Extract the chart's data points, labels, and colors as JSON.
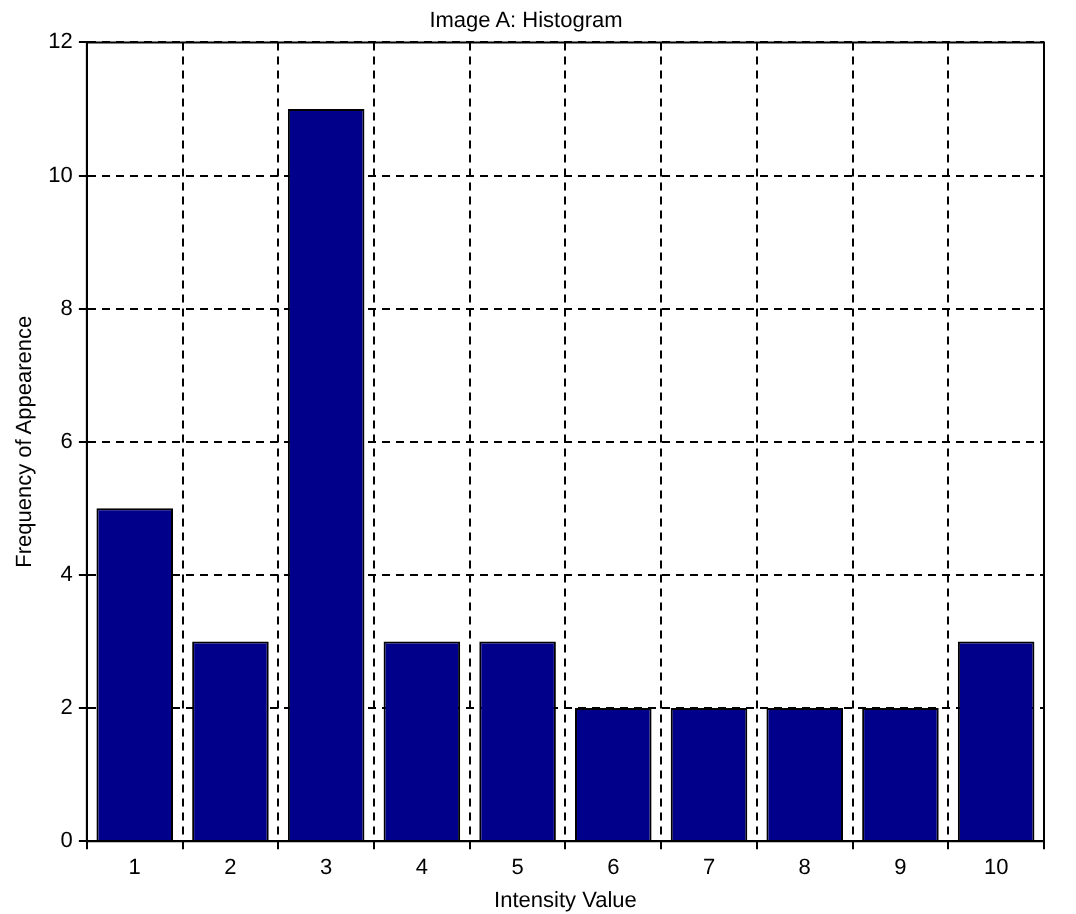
{
  "chart_data": {
    "type": "bar",
    "title": "Image A: Histogram",
    "xlabel": "Intensity Value",
    "ylabel": "Frequency of Appearence",
    "categories": [
      "1",
      "2",
      "3",
      "4",
      "5",
      "6",
      "7",
      "8",
      "9",
      "10"
    ],
    "values": [
      5,
      3,
      11,
      3,
      3,
      2,
      2,
      2,
      2,
      3
    ],
    "color": "#00008b",
    "ylim": [
      0,
      12
    ],
    "yticks": [
      0,
      2,
      4,
      6,
      8,
      10,
      12
    ],
    "grid": true,
    "line_style": "dashed"
  }
}
